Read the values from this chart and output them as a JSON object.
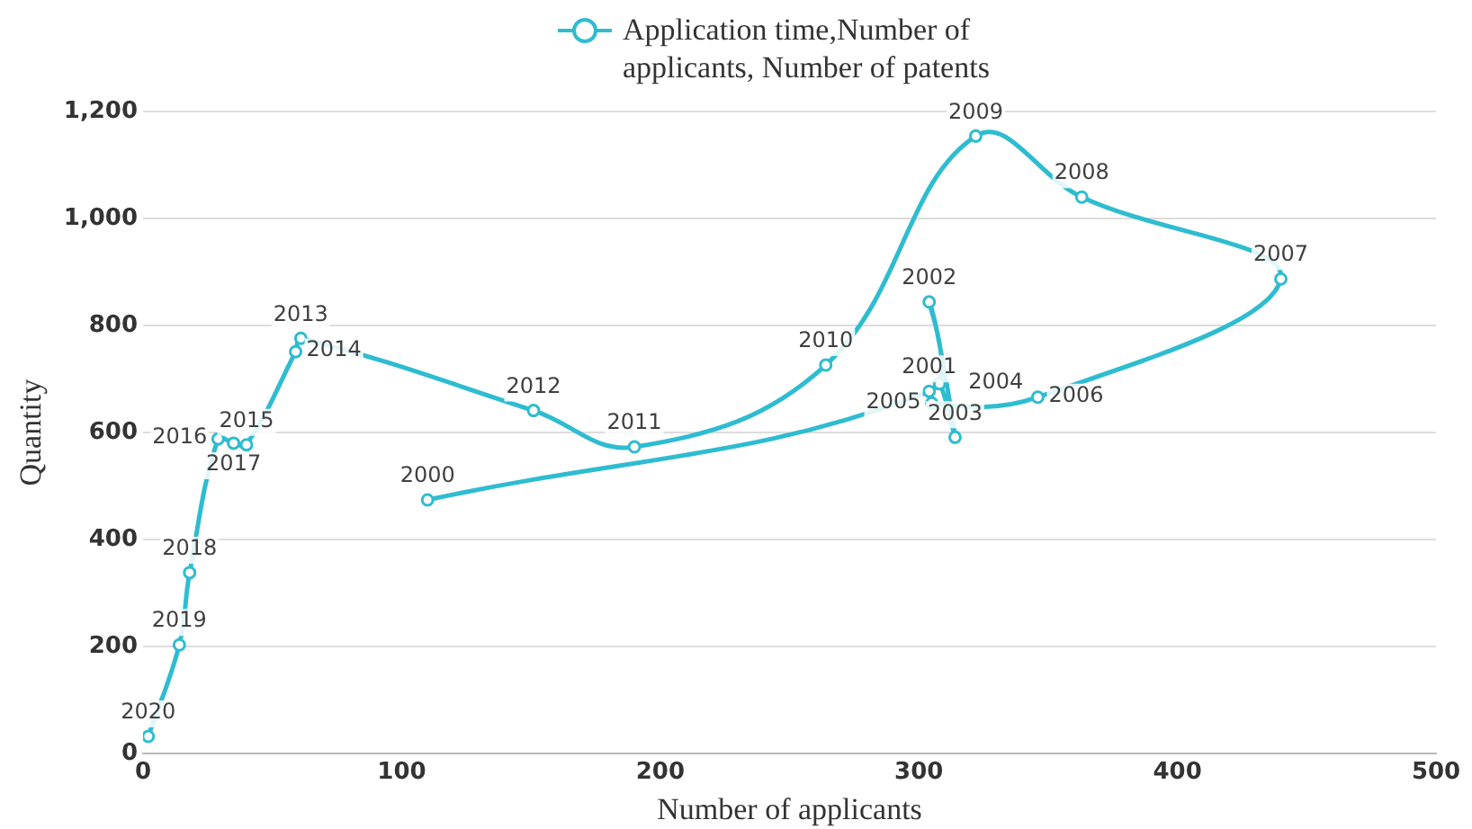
{
  "chart_data": {
    "type": "line",
    "xlabel": "Number of applicants",
    "ylabel": "Quantity",
    "xlim": [
      0,
      500
    ],
    "xticks": [
      0,
      100,
      200,
      300,
      400,
      500
    ],
    "ylim": [
      0,
      1200
    ],
    "yticks": [
      0,
      {
        "value": 200,
        "label": "200"
      },
      {
        "value": 400,
        "label": "400"
      },
      {
        "value": 600,
        "label": "600"
      },
      {
        "value": 800,
        "label": "800"
      },
      {
        "value": 1000,
        "label": "1,000"
      },
      {
        "value": 1200,
        "label": "1,200"
      }
    ],
    "grid": "y",
    "legend": "top",
    "marker": "circle",
    "line_style": "solid",
    "series": [
      {
        "name": "Application time,Number of applicants, Number of patents",
        "color": "#2ebcd0",
        "x": [
          110,
          304,
          304,
          314,
          308,
          305,
          346,
          440,
          363,
          322,
          264,
          190,
          151,
          61,
          59,
          40,
          35,
          29,
          18,
          14,
          2
        ],
        "values": [
          474,
          677,
          844,
          591,
          691,
          655,
          666,
          887,
          1040,
          1154,
          726,
          573,
          641,
          776,
          751,
          577,
          580,
          588,
          338,
          203,
          32
        ]
      }
    ],
    "annotations": [
      {
        "text": "2000",
        "x": 110,
        "y": 474
      },
      {
        "text": "2001",
        "x": 304,
        "y": 677
      },
      {
        "text": "2002",
        "x": 304,
        "y": 844
      },
      {
        "text": "2003",
        "x": 314,
        "y": 591
      },
      {
        "text": "2004",
        "x": 308,
        "y": 691
      },
      {
        "text": "2005",
        "x": 305,
        "y": 655
      },
      {
        "text": "2006",
        "x": 346,
        "y": 666
      },
      {
        "text": "2007",
        "x": 440,
        "y": 887
      },
      {
        "text": "2008",
        "x": 363,
        "y": 1040
      },
      {
        "text": "2009",
        "x": 322,
        "y": 1154
      },
      {
        "text": "2010",
        "x": 264,
        "y": 726
      },
      {
        "text": "2011",
        "x": 190,
        "y": 573
      },
      {
        "text": "2012",
        "x": 151,
        "y": 641
      },
      {
        "text": "2013",
        "x": 61,
        "y": 776
      },
      {
        "text": "2014",
        "x": 59,
        "y": 751
      },
      {
        "text": "2015",
        "x": 40,
        "y": 577
      },
      {
        "text": "2017",
        "x": 35,
        "y": 580
      },
      {
        "text": "2016",
        "x": 29,
        "y": 588
      },
      {
        "text": "2018",
        "x": 18,
        "y": 338
      },
      {
        "text": "2019",
        "x": 14,
        "y": 203
      },
      {
        "text": "2020",
        "x": 2,
        "y": 32
      }
    ]
  }
}
